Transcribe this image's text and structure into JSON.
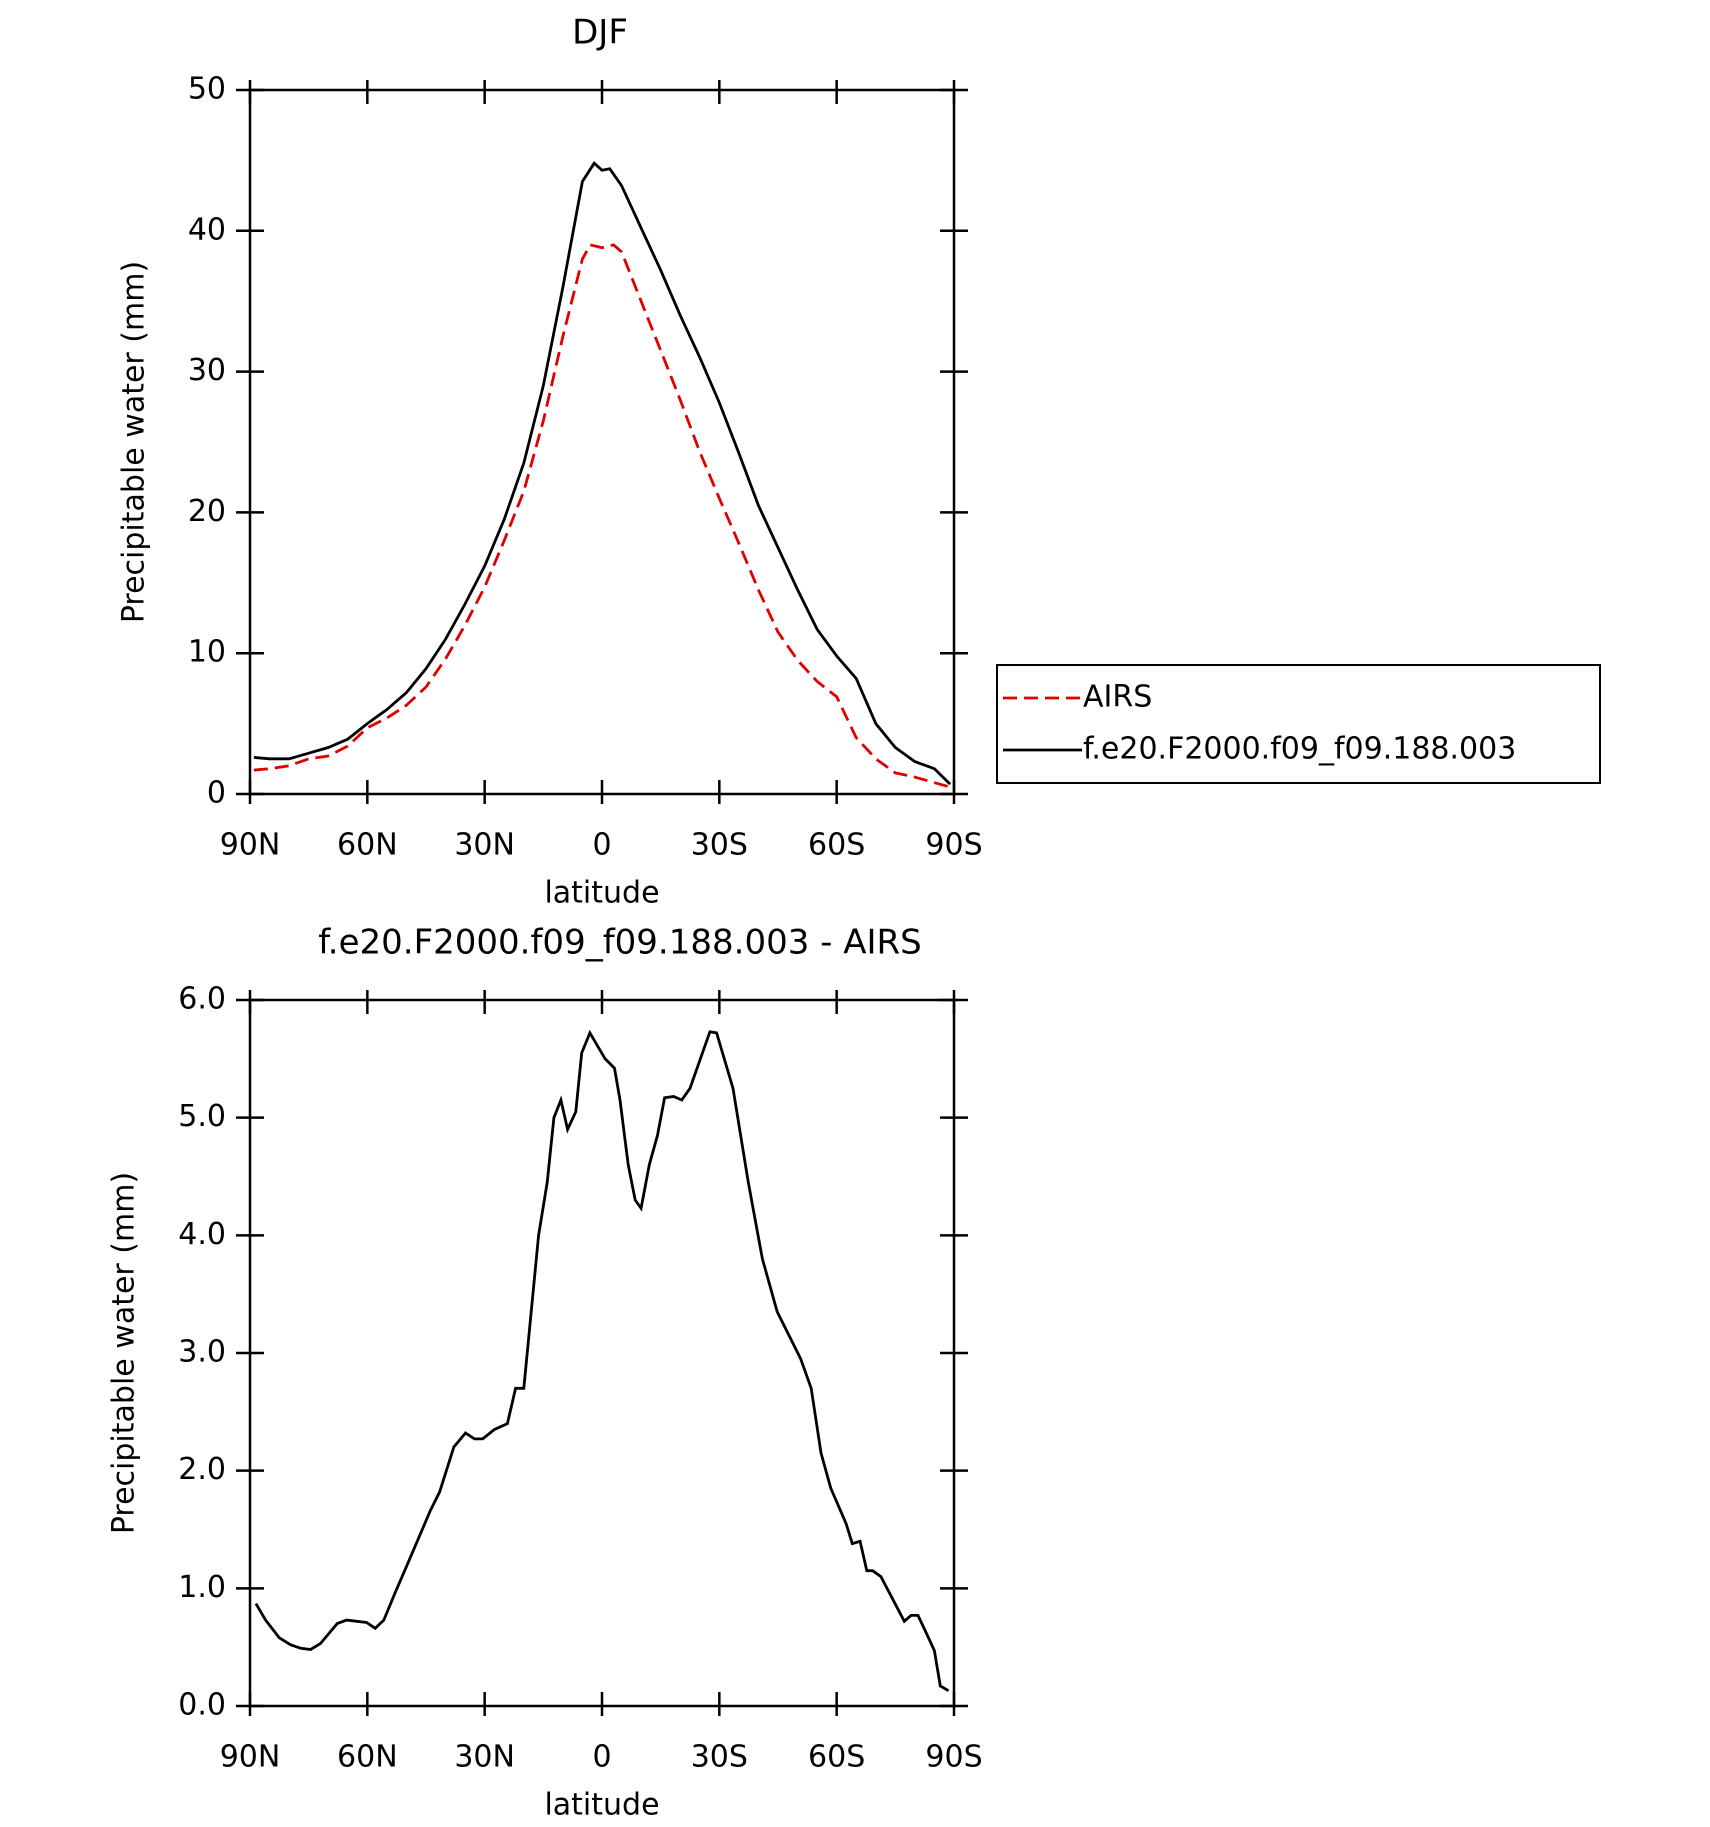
{
  "chart_data": [
    {
      "type": "line",
      "title": "DJF",
      "xlabel": "latitude",
      "ylabel": "Precipitable water (mm)",
      "xlim": [
        90,
        -90
      ],
      "xticks": [
        {
          "value": 90,
          "label": "90N"
        },
        {
          "value": 60,
          "label": "60N"
        },
        {
          "value": 30,
          "label": "30N"
        },
        0,
        {
          "value": -30,
          "label": "30S"
        },
        {
          "value": -60,
          "label": "60S"
        },
        {
          "value": -90,
          "label": "90S"
        }
      ],
      "ylim": [
        0,
        50
      ],
      "yticks": [
        0,
        10,
        20,
        30,
        40,
        50
      ],
      "legend": "right",
      "series": [
        {
          "name": "AIRS",
          "color": "#e00000",
          "dashed": true,
          "x": [
            89,
            85,
            80,
            75,
            70,
            65,
            60,
            55,
            50,
            45,
            40,
            35,
            30,
            25,
            20,
            15,
            10,
            5,
            3,
            0,
            -3,
            -5,
            -10,
            -15,
            -20,
            -25,
            -30,
            -35,
            -40,
            -45,
            -50,
            -55,
            -60,
            -65,
            -70,
            -75,
            -80,
            -85,
            -89
          ],
          "values": [
            1.7,
            1.8,
            2.0,
            2.5,
            2.7,
            3.4,
            4.7,
            5.4,
            6.3,
            7.6,
            9.6,
            12,
            14.7,
            18,
            21.5,
            26.5,
            32.5,
            38,
            39,
            38.8,
            39,
            38.5,
            35,
            31.5,
            28,
            24.3,
            21,
            17.8,
            14.5,
            11.5,
            9.5,
            8,
            6.9,
            4,
            2.5,
            1.5,
            1.2,
            0.8,
            0.5
          ]
        },
        {
          "name": "f.e20.F2000.f09_f09.188.003",
          "color": "#000000",
          "dashed": false,
          "x": [
            89,
            85,
            80,
            75,
            70,
            65,
            60,
            55,
            50,
            45,
            40,
            35,
            30,
            25,
            20,
            15,
            10,
            5,
            2,
            0,
            -2,
            -5,
            -10,
            -15,
            -20,
            -25,
            -30,
            -35,
            -40,
            -45,
            -50,
            -55,
            -60,
            -65,
            -70,
            -75,
            -80,
            -85,
            -89
          ],
          "values": [
            2.6,
            2.5,
            2.5,
            2.9,
            3.3,
            3.9,
            5.0,
            6.0,
            7.2,
            8.9,
            11,
            13.5,
            16.2,
            19.5,
            23.5,
            29,
            36,
            43.5,
            44.8,
            44.3,
            44.4,
            43.2,
            40.2,
            37.2,
            34,
            31,
            27.8,
            24.2,
            20.5,
            17.5,
            14.5,
            11.7,
            9.8,
            8.2,
            5.0,
            3.3,
            2.3,
            1.8,
            0.7
          ]
        }
      ]
    },
    {
      "type": "line",
      "title": "f.e20.F2000.f09_f09.188.003 - AIRS",
      "xlabel": "latitude",
      "ylabel": "Precipitable water (mm)",
      "xlim": [
        90,
        -90
      ],
      "xticks": [
        {
          "value": 90,
          "label": "90N"
        },
        {
          "value": 60,
          "label": "60N"
        },
        {
          "value": 30,
          "label": "30N"
        },
        0,
        {
          "value": -30,
          "label": "30S"
        },
        {
          "value": -60,
          "label": "60S"
        },
        {
          "value": -90,
          "label": "90S"
        }
      ],
      "ylim": [
        0,
        6
      ],
      "yticks": [
        {
          "value": 0,
          "label": "0.0"
        },
        {
          "value": 1,
          "label": "1.0"
        },
        {
          "value": 2,
          "label": "2.0"
        },
        {
          "value": 3,
          "label": "3.0"
        },
        {
          "value": 4,
          "label": "4.0"
        },
        {
          "value": 5,
          "label": "5.0"
        },
        {
          "value": 6,
          "label": "6.0"
        }
      ],
      "series": [
        {
          "color": "#000000",
          "dashed": false,
          "x": [
            88.5,
            86,
            82.5,
            79.6,
            77,
            74.5,
            72,
            67.7,
            65.3,
            60.2,
            58,
            55.8,
            52.8,
            49.8,
            43.9,
            41.5,
            37.9,
            34.9,
            32.6,
            30.5,
            27.5,
            24.2,
            22.1,
            20,
            16.2,
            14,
            12.3,
            10.5,
            8.8,
            6.7,
            5.2,
            3.1,
            -0.8,
            -3.2,
            -4.6,
            -6.7,
            -8.5,
            -10,
            -12.1,
            -14.2,
            -16,
            -18.3,
            -20.4,
            -22.5,
            -27.6,
            -29.3,
            -33.5,
            -37.4,
            -41,
            -44.8,
            -50.8,
            -53.5,
            -56,
            -58.5,
            -62.4,
            -64,
            -66,
            -67.7,
            -69.2,
            -71.3,
            -77.3,
            -79,
            -80.8,
            -83.2,
            -85,
            -86.5,
            -88.6
          ],
          "values": [
            0.87,
            0.73,
            0.58,
            0.52,
            0.49,
            0.48,
            0.53,
            0.7,
            0.73,
            0.71,
            0.66,
            0.73,
            0.97,
            1.2,
            1.66,
            1.82,
            2.2,
            2.32,
            2.27,
            2.27,
            2.35,
            2.4,
            2.7,
            2.7,
            4.0,
            4.45,
            5.0,
            5.15,
            4.9,
            5.05,
            5.55,
            5.72,
            5.5,
            5.42,
            5.15,
            4.6,
            4.3,
            4.23,
            4.6,
            4.85,
            5.17,
            5.18,
            5.15,
            5.25,
            5.73,
            5.72,
            5.25,
            4.45,
            3.8,
            3.35,
            2.95,
            2.7,
            2.15,
            1.85,
            1.55,
            1.38,
            1.4,
            1.15,
            1.15,
            1.1,
            0.72,
            0.77,
            0.77,
            0.6,
            0.47,
            0.17,
            0.13
          ]
        }
      ]
    }
  ]
}
